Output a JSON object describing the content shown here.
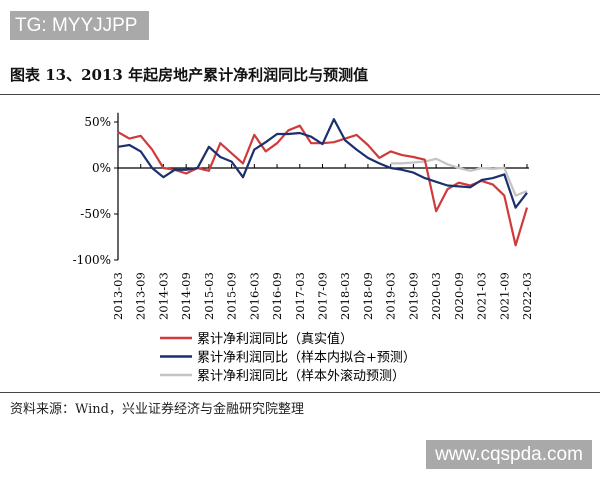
{
  "watermark_top": "TG: MYYJJPP",
  "watermark_bottom": "www.cqspda.com",
  "title": "图表 13、2013 年起房地产累计净利润同比与预测值",
  "source": "资料来源：Wind，兴业证券经济与金融研究院整理",
  "chart_data": {
    "type": "line",
    "title": "",
    "xlabel": "",
    "ylabel": "",
    "ylim": [
      -100,
      60
    ],
    "yticks": [
      "50%",
      "0%",
      "-50%",
      "-100%"
    ],
    "ytick_values": [
      50,
      0,
      -50,
      -100
    ],
    "xtick_labels": [
      "2013-03",
      "2013-09",
      "2014-03",
      "2014-09",
      "2015-03",
      "2015-09",
      "2016-03",
      "2016-09",
      "2017-03",
      "2017-09",
      "2018-03",
      "2018-09",
      "2019-03",
      "2019-09",
      "2020-03",
      "2020-09",
      "2021-03",
      "2021-09",
      "2022-03"
    ],
    "x": [
      "2013-03",
      "2013-06",
      "2013-09",
      "2013-12",
      "2014-03",
      "2014-06",
      "2014-09",
      "2014-12",
      "2015-03",
      "2015-06",
      "2015-09",
      "2015-12",
      "2016-03",
      "2016-06",
      "2016-09",
      "2016-12",
      "2017-03",
      "2017-06",
      "2017-09",
      "2017-12",
      "2018-03",
      "2018-06",
      "2018-09",
      "2018-12",
      "2019-03",
      "2019-06",
      "2019-09",
      "2019-12",
      "2020-03",
      "2020-06",
      "2020-09",
      "2020-12",
      "2021-03",
      "2021-06",
      "2021-09",
      "2021-12",
      "2022-03"
    ],
    "legend_position": "bottom",
    "series": [
      {
        "name": "累计净利润同比（真实值）",
        "color": "#d03a3a",
        "values": [
          39,
          32,
          35,
          20,
          0,
          -2,
          -6,
          0,
          -3,
          27,
          16,
          5,
          36,
          18,
          27,
          41,
          46,
          27,
          27,
          28,
          32,
          36,
          25,
          11,
          18,
          14,
          12,
          9,
          -47,
          -23,
          -16,
          -19,
          -14,
          -18,
          -30,
          -84,
          -43
        ]
      },
      {
        "name": "累计净利润同比（样本内拟合+预测）",
        "color": "#1c2f6e",
        "values": [
          23,
          25,
          18,
          0,
          -10,
          -2,
          -2,
          0,
          23,
          12,
          7,
          -10,
          20,
          28,
          37,
          37,
          38,
          34,
          26,
          53,
          30,
          20,
          11,
          5,
          0,
          -2,
          -5,
          -11,
          -15,
          -19,
          -20,
          -21,
          -13,
          -11,
          -7,
          -43,
          -27
        ]
      },
      {
        "name": "累计净利润同比（样本外滚动预测）",
        "color": "#c4c4c4",
        "values": [
          null,
          null,
          null,
          null,
          null,
          null,
          null,
          null,
          null,
          null,
          null,
          null,
          null,
          null,
          null,
          null,
          null,
          null,
          null,
          null,
          null,
          null,
          null,
          null,
          5,
          5,
          6,
          7,
          10,
          4,
          0,
          -3,
          0,
          -1,
          0,
          -30,
          -25
        ]
      }
    ]
  }
}
